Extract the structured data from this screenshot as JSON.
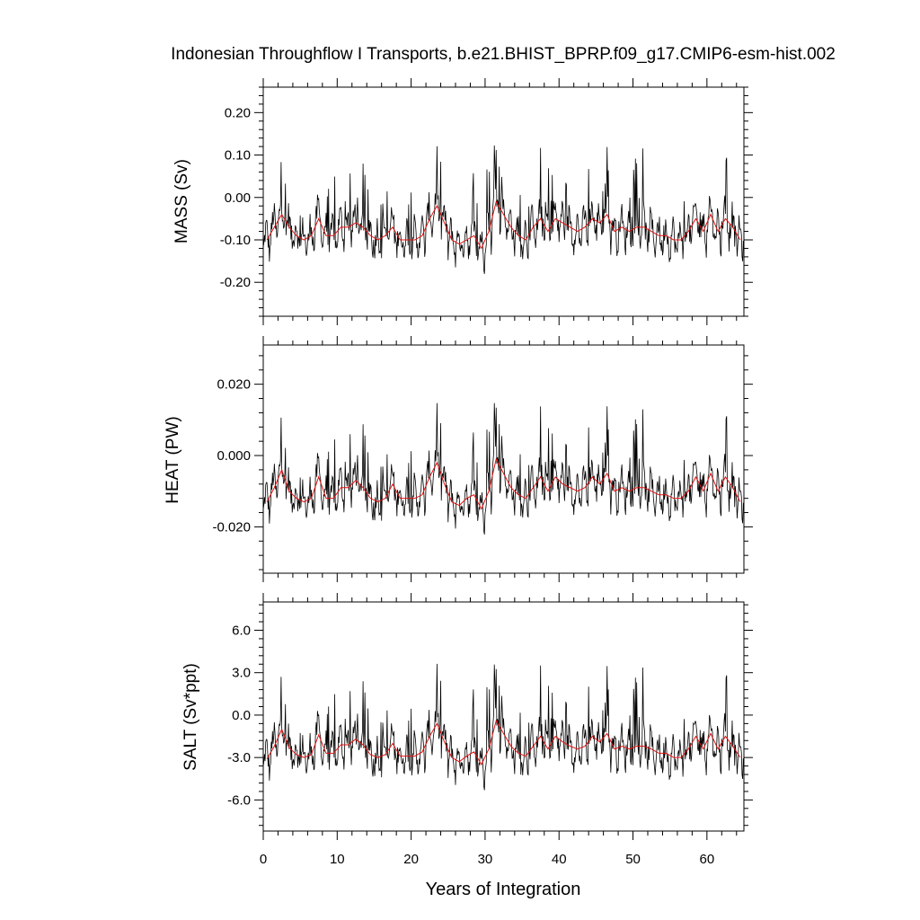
{
  "chart_data": {
    "type": "line",
    "title": "Indonesian Throughflow I Transports, b.e21.BHIST_BPRP.f09_g17.CMIP6-esm-hist.002",
    "xlabel": "Years of Integration",
    "xlim": [
      0,
      65
    ],
    "xticks": [
      0,
      10,
      20,
      30,
      40,
      50,
      60
    ],
    "xtick_labels": [
      "0",
      "10",
      "20",
      "30",
      "40",
      "50",
      "60"
    ],
    "series_colors": {
      "monthly": "#000000",
      "annual": "#e01010"
    },
    "panels": [
      {
        "name": "mass",
        "ylabel": "MASS (Sv)",
        "ylim": [
          -0.28,
          0.26
        ],
        "yticks": [
          0.2,
          0.1,
          0.0,
          -0.1,
          -0.2
        ],
        "ytick_labels": [
          "0.20",
          "0.10",
          "0.00",
          "-0.10",
          "-0.20"
        ],
        "annual_x": [
          0.5,
          1.5,
          2.5,
          3.5,
          4.5,
          5.5,
          6.5,
          7.5,
          8.5,
          9.5,
          10.5,
          11.5,
          12.5,
          13.5,
          14.5,
          15.5,
          16.5,
          17.5,
          18.5,
          19.5,
          20.5,
          21.5,
          22.5,
          23.5,
          24.5,
          25.5,
          26.5,
          27.5,
          28.5,
          29.5,
          30.5,
          31.5,
          32.5,
          33.5,
          34.5,
          35.5,
          36.5,
          37.5,
          38.5,
          39.5,
          40.5,
          41.5,
          42.5,
          43.5,
          44.5,
          45.5,
          46.5,
          47.5,
          48.5,
          49.5,
          50.5,
          51.5,
          52.5,
          53.5,
          54.5,
          55.5,
          56.5,
          57.5,
          58.5,
          59.5,
          60.5,
          61.5,
          62.5,
          63.5,
          64.5
        ],
        "annual_y": [
          -0.1,
          -0.07,
          -0.04,
          -0.07,
          -0.09,
          -0.1,
          -0.09,
          -0.05,
          -0.09,
          -0.09,
          -0.07,
          -0.07,
          -0.06,
          -0.07,
          -0.09,
          -0.1,
          -0.09,
          -0.07,
          -0.1,
          -0.1,
          -0.1,
          -0.09,
          -0.05,
          -0.02,
          -0.06,
          -0.1,
          -0.11,
          -0.1,
          -0.09,
          -0.12,
          -0.08,
          -0.01,
          -0.04,
          -0.07,
          -0.09,
          -0.1,
          -0.07,
          -0.05,
          -0.08,
          -0.05,
          -0.06,
          -0.07,
          -0.08,
          -0.07,
          -0.05,
          -0.06,
          -0.04,
          -0.08,
          -0.07,
          -0.08,
          -0.07,
          -0.07,
          -0.08,
          -0.09,
          -0.09,
          -0.1,
          -0.1,
          -0.08,
          -0.05,
          -0.08,
          -0.04,
          -0.08,
          -0.05,
          -0.07,
          -0.1
        ]
      },
      {
        "name": "heat",
        "ylabel": "HEAT (PW)",
        "ylim": [
          -0.033,
          0.031
        ],
        "yticks": [
          0.02,
          0.0,
          -0.02
        ],
        "ytick_labels": [
          "0.020",
          "0.000",
          "-0.020"
        ],
        "annual_x": [
          0.5,
          1.5,
          2.5,
          3.5,
          4.5,
          5.5,
          6.5,
          7.5,
          8.5,
          9.5,
          10.5,
          11.5,
          12.5,
          13.5,
          14.5,
          15.5,
          16.5,
          17.5,
          18.5,
          19.5,
          20.5,
          21.5,
          22.5,
          23.5,
          24.5,
          25.5,
          26.5,
          27.5,
          28.5,
          29.5,
          30.5,
          31.5,
          32.5,
          33.5,
          34.5,
          35.5,
          36.5,
          37.5,
          38.5,
          39.5,
          40.5,
          41.5,
          42.5,
          43.5,
          44.5,
          45.5,
          46.5,
          47.5,
          48.5,
          49.5,
          50.5,
          51.5,
          52.5,
          53.5,
          54.5,
          55.5,
          56.5,
          57.5,
          58.5,
          59.5,
          60.5,
          61.5,
          62.5,
          63.5,
          64.5
        ],
        "annual_y": [
          -0.013,
          -0.009,
          -0.004,
          -0.01,
          -0.012,
          -0.013,
          -0.012,
          -0.006,
          -0.012,
          -0.012,
          -0.009,
          -0.009,
          -0.007,
          -0.009,
          -0.012,
          -0.013,
          -0.012,
          -0.008,
          -0.012,
          -0.012,
          -0.012,
          -0.011,
          -0.006,
          -0.002,
          -0.008,
          -0.013,
          -0.014,
          -0.012,
          -0.011,
          -0.015,
          -0.01,
          -0.001,
          -0.005,
          -0.009,
          -0.011,
          -0.012,
          -0.009,
          -0.006,
          -0.01,
          -0.006,
          -0.008,
          -0.009,
          -0.01,
          -0.009,
          -0.006,
          -0.008,
          -0.005,
          -0.01,
          -0.009,
          -0.01,
          -0.009,
          -0.009,
          -0.01,
          -0.011,
          -0.011,
          -0.012,
          -0.012,
          -0.01,
          -0.006,
          -0.01,
          -0.005,
          -0.01,
          -0.006,
          -0.009,
          -0.013
        ]
      },
      {
        "name": "salt",
        "ylabel": "SALT (Sv*ppt)",
        "ylim": [
          -8.2,
          8.0
        ],
        "yticks": [
          6.0,
          3.0,
          0.0,
          -3.0,
          -6.0
        ],
        "ytick_labels": [
          "6.0",
          "3.0",
          "0.0",
          "-3.0",
          "-6.0"
        ],
        "annual_x": [
          0.5,
          1.5,
          2.5,
          3.5,
          4.5,
          5.5,
          6.5,
          7.5,
          8.5,
          9.5,
          10.5,
          11.5,
          12.5,
          13.5,
          14.5,
          15.5,
          16.5,
          17.5,
          18.5,
          19.5,
          20.5,
          21.5,
          22.5,
          23.5,
          24.5,
          25.5,
          26.5,
          27.5,
          28.5,
          29.5,
          30.5,
          31.5,
          32.5,
          33.5,
          34.5,
          35.5,
          36.5,
          37.5,
          38.5,
          39.5,
          40.5,
          41.5,
          42.5,
          43.5,
          44.5,
          45.5,
          46.5,
          47.5,
          48.5,
          49.5,
          50.5,
          51.5,
          52.5,
          53.5,
          54.5,
          55.5,
          56.5,
          57.5,
          58.5,
          59.5,
          60.5,
          61.5,
          62.5,
          63.5,
          64.5
        ],
        "annual_y": [
          -3.1,
          -2.2,
          -1.0,
          -2.3,
          -2.8,
          -3.0,
          -2.8,
          -1.4,
          -2.7,
          -2.7,
          -2.1,
          -2.1,
          -1.7,
          -2.1,
          -2.8,
          -3.0,
          -2.8,
          -2.0,
          -2.9,
          -2.9,
          -2.9,
          -2.6,
          -1.5,
          -0.6,
          -1.9,
          -3.0,
          -3.3,
          -2.9,
          -2.6,
          -3.5,
          -2.4,
          -0.4,
          -1.3,
          -2.2,
          -2.7,
          -2.9,
          -2.2,
          -1.5,
          -2.4,
          -1.5,
          -1.9,
          -2.2,
          -2.4,
          -2.2,
          -1.5,
          -1.9,
          -1.3,
          -2.4,
          -2.2,
          -2.4,
          -2.2,
          -2.2,
          -2.4,
          -2.7,
          -2.7,
          -3.0,
          -3.0,
          -2.4,
          -1.5,
          -2.4,
          -1.3,
          -2.4,
          -1.5,
          -2.2,
          -3.0
        ]
      }
    ]
  }
}
